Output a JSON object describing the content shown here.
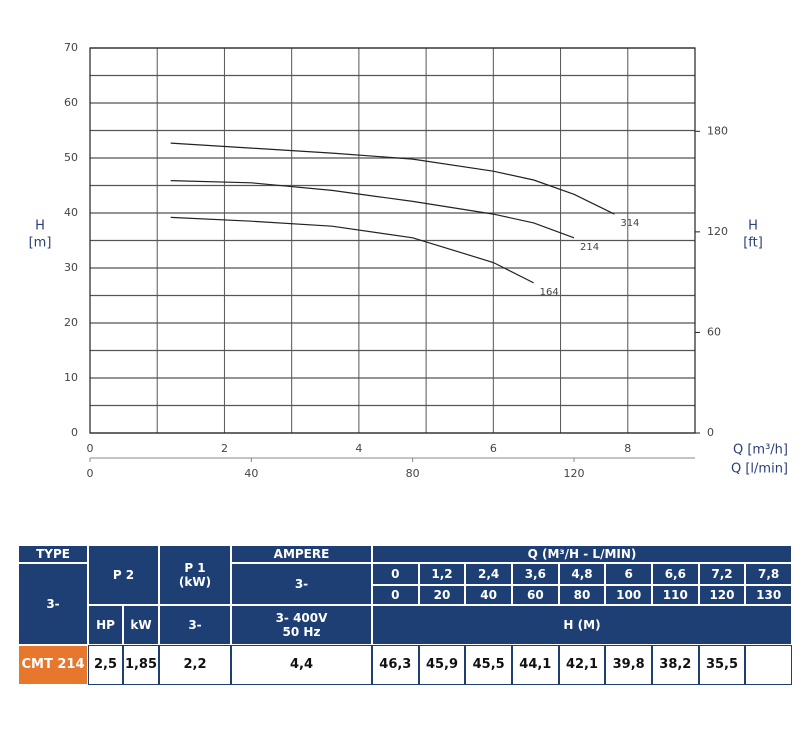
{
  "chart_data": {
    "type": "line",
    "ylabel": [
      "H",
      "[m]"
    ],
    "y2label": [
      "H",
      "[ft]"
    ],
    "xlabel": "Q [m³/h]",
    "x2label": "Q [l/min]",
    "xlim": [
      0,
      9
    ],
    "xticks": [
      0,
      2,
      4,
      6,
      8
    ],
    "xgrid": [
      0,
      1,
      2,
      3,
      4,
      5,
      6,
      7,
      8,
      9
    ],
    "x2lim": [
      0,
      150
    ],
    "x2ticks": [
      0,
      40,
      80,
      120
    ],
    "ylim": [
      0,
      70
    ],
    "yticks": [
      0,
      10,
      20,
      30,
      40,
      50,
      60,
      70
    ],
    "ygrid": [
      0,
      5,
      10,
      15,
      20,
      25,
      30,
      35,
      40,
      45,
      50,
      55,
      60,
      65,
      70
    ],
    "y2lim": [
      0,
      229.7
    ],
    "y2ticks": [
      0,
      60,
      120,
      180
    ],
    "grid": true,
    "series": [
      {
        "name": "314",
        "color": "#222222",
        "x": [
          1.2,
          2.4,
          3.6,
          4.8,
          6,
          6.6,
          7.2,
          7.8
        ],
        "values": [
          52.7,
          51.8,
          50.9,
          49.8,
          47.6,
          46.0,
          43.4,
          39.8
        ]
      },
      {
        "name": "214",
        "color": "#222222",
        "x": [
          1.2,
          2.4,
          3.6,
          4.8,
          6,
          6.6,
          7.2
        ],
        "values": [
          45.9,
          45.5,
          44.1,
          42.1,
          39.8,
          38.2,
          35.5
        ]
      },
      {
        "name": "164",
        "color": "#222222",
        "x": [
          1.2,
          2.4,
          3.6,
          4.8,
          6,
          6.6
        ],
        "values": [
          39.2,
          38.5,
          37.6,
          35.5,
          31.0,
          27.3
        ]
      }
    ]
  },
  "table": {
    "header": {
      "type": "TYPE",
      "p2": "P 2",
      "p1": [
        "P 1",
        "(kW)"
      ],
      "ampere": "AMPERE",
      "q": "Q (M³/H - L/MIN)",
      "q_m3h": [
        "0",
        "1,2",
        "2,4",
        "3,6",
        "4,8",
        "6",
        "6,6",
        "7,2",
        "7,8"
      ],
      "q_lmin": [
        "0",
        "20",
        "40",
        "60",
        "80",
        "100",
        "110",
        "120",
        "130"
      ],
      "type_phase": "3-",
      "ampere_phase": "3-",
      "hp": "HP",
      "kw": "kW",
      "p1_phase": "3-",
      "ampere_voltage": [
        "3- 400V",
        "50 Hz"
      ],
      "h": "H (M)"
    },
    "rows": [
      [
        "CMT 214",
        "2,5",
        "1,85",
        "2,2",
        "4,4",
        "46,3",
        "45,9",
        "45,5",
        "44,1",
        "42,1",
        "39,8",
        "38,2",
        "35,5"
      ]
    ]
  }
}
